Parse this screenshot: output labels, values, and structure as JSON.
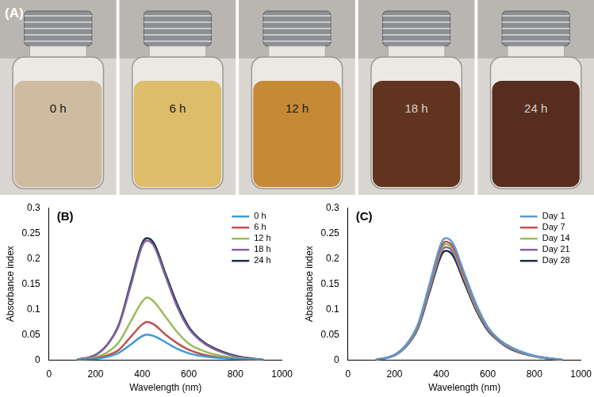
{
  "photos": {
    "label": "(A)",
    "items": [
      {
        "label": "0 h",
        "color": "#cdb99c"
      },
      {
        "label": "6 h",
        "color": "#dcbb62"
      },
      {
        "label": "12 h",
        "color": "#c4842c"
      },
      {
        "label": "18 h",
        "color": "#5a2a14"
      },
      {
        "label": "24 h",
        "color": "#4e2313"
      }
    ]
  },
  "chart_data": [
    {
      "type": "line",
      "title": "(B)",
      "x_label": "Wavelength (nm)",
      "y_label": "Absorbance index",
      "x": [
        120,
        200,
        250,
        300,
        350,
        400,
        420,
        450,
        500,
        550,
        600,
        650,
        700,
        800,
        920
      ],
      "series": [
        {
          "name": "0 h",
          "color": "#3a9ad9",
          "values": [
            0,
            0.002,
            0.006,
            0.014,
            0.03,
            0.047,
            0.05,
            0.047,
            0.035,
            0.022,
            0.013,
            0.008,
            0.005,
            0.002,
            0
          ]
        },
        {
          "name": "6 h",
          "color": "#c0504d",
          "values": [
            0,
            0.003,
            0.009,
            0.02,
            0.045,
            0.07,
            0.075,
            0.07,
            0.05,
            0.033,
            0.02,
            0.012,
            0.007,
            0.002,
            0
          ]
        },
        {
          "name": "12 h",
          "color": "#9bbb59",
          "values": [
            0,
            0.005,
            0.015,
            0.035,
            0.075,
            0.115,
            0.123,
            0.115,
            0.085,
            0.055,
            0.032,
            0.02,
            0.012,
            0.004,
            0
          ]
        },
        {
          "name": "18 h",
          "color": "#8064a2",
          "values": [
            0,
            0.01,
            0.03,
            0.068,
            0.145,
            0.225,
            0.235,
            0.225,
            0.165,
            0.105,
            0.062,
            0.038,
            0.023,
            0.007,
            0
          ]
        },
        {
          "name": "24 h",
          "color": "#1f2a44",
          "values": [
            0,
            0.01,
            0.03,
            0.07,
            0.15,
            0.23,
            0.24,
            0.23,
            0.17,
            0.11,
            0.065,
            0.04,
            0.025,
            0.008,
            0
          ]
        }
      ],
      "xlim": [
        0,
        1000
      ],
      "xticks": [
        0,
        200,
        400,
        600,
        800,
        1000
      ],
      "ylim": [
        0,
        0.3
      ],
      "yticks": [
        0,
        0.05,
        0.1,
        0.15,
        0.2,
        0.25,
        0.3
      ],
      "grid": false,
      "legend": "upper right",
      "marker": "none"
    },
    {
      "type": "line",
      "title": "(C)",
      "x_label": "Wavelength (nm)",
      "y_label": "Absorbance index",
      "x": [
        120,
        200,
        250,
        300,
        350,
        400,
        420,
        450,
        500,
        550,
        600,
        650,
        700,
        800,
        920
      ],
      "series": [
        {
          "name": "Day 1",
          "color": "#5b9bd5",
          "values": [
            0,
            0.01,
            0.03,
            0.07,
            0.15,
            0.23,
            0.24,
            0.23,
            0.17,
            0.11,
            0.065,
            0.04,
            0.025,
            0.008,
            0
          ]
        },
        {
          "name": "Day 7",
          "color": "#c0504d",
          "values": [
            0,
            0.01,
            0.03,
            0.068,
            0.145,
            0.223,
            0.233,
            0.223,
            0.165,
            0.107,
            0.063,
            0.039,
            0.024,
            0.008,
            0
          ]
        },
        {
          "name": "Day 14",
          "color": "#9bbb59",
          "values": [
            0,
            0.01,
            0.029,
            0.066,
            0.142,
            0.218,
            0.228,
            0.218,
            0.161,
            0.104,
            0.062,
            0.038,
            0.023,
            0.007,
            0
          ]
        },
        {
          "name": "Day 21",
          "color": "#8064a2",
          "values": [
            0,
            0.009,
            0.028,
            0.064,
            0.138,
            0.213,
            0.222,
            0.213,
            0.157,
            0.101,
            0.06,
            0.037,
            0.022,
            0.007,
            0
          ]
        },
        {
          "name": "Day 28",
          "color": "#1f2a44",
          "values": [
            0,
            0.009,
            0.027,
            0.062,
            0.134,
            0.206,
            0.215,
            0.206,
            0.152,
            0.098,
            0.058,
            0.036,
            0.021,
            0.007,
            0
          ]
        }
      ],
      "xlim": [
        0,
        1000
      ],
      "xticks": [
        0,
        200,
        400,
        600,
        800,
        1000
      ],
      "ylim": [
        0,
        0.3
      ],
      "yticks": [
        0,
        0.05,
        0.1,
        0.15,
        0.2,
        0.25,
        0.3
      ],
      "grid": false,
      "legend": "upper right",
      "marker": "none"
    }
  ]
}
